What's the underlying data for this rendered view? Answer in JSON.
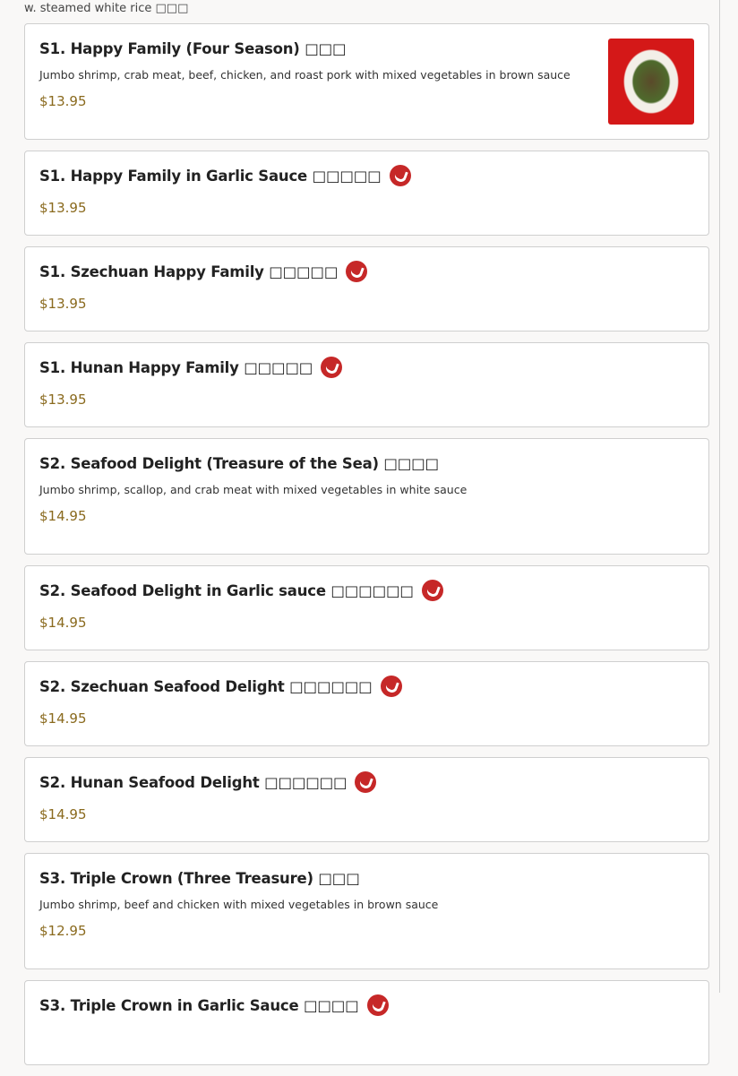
{
  "top_text": "w. steamed white rice □□□",
  "items": [
    {
      "title": "S1. Happy Family (Four Season) □□□",
      "desc": "Jumbo shrimp, crab meat, beef, chicken, and roast pork with mixed vegetables in brown sauce",
      "price": "$13.95",
      "spicy": false,
      "image": true
    },
    {
      "title": "S1. Happy Family in Garlic Sauce □□□□□",
      "price": "$13.95",
      "spicy": true
    },
    {
      "title": "S1. Szechuan Happy Family □□□□□",
      "price": "$13.95",
      "spicy": true
    },
    {
      "title": "S1. Hunan Happy Family □□□□□",
      "price": "$13.95",
      "spicy": true
    },
    {
      "title": "S2. Seafood Delight (Treasure of the Sea) □□□□",
      "desc": "Jumbo shrimp, scallop, and crab meat with mixed vegetables in white sauce",
      "price": "$14.95",
      "spicy": false
    },
    {
      "title": "S2. Seafood Delight in Garlic sauce □□□□□□",
      "price": "$14.95",
      "spicy": true
    },
    {
      "title": "S2. Szechuan Seafood Delight □□□□□□",
      "price": "$14.95",
      "spicy": true
    },
    {
      "title": "S2. Hunan Seafood Delight □□□□□□",
      "price": "$14.95",
      "spicy": true
    },
    {
      "title": "S3. Triple Crown (Three Treasure) □□□",
      "desc": "Jumbo shrimp, beef and chicken with mixed vegetables in brown sauce",
      "price": "$12.95",
      "spicy": false
    },
    {
      "title": "S3. Triple Crown in Garlic Sauce □□□□",
      "price": "",
      "spicy": true
    }
  ]
}
